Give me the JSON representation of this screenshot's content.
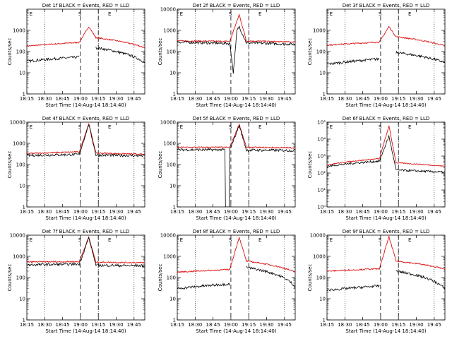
{
  "colors": {
    "events": "#000000",
    "lld": "#dd1111",
    "axis": "#000000",
    "guides": "#000000"
  },
  "chart_data": {
    "type": "line",
    "xlabel": "Start Time (14-Aug-14 18:14:40)",
    "ylabel": "Counts/sec",
    "x_ticks": [
      "18:15",
      "18:30",
      "18:45",
      "19:00",
      "19:15",
      "19:30",
      "19:45"
    ],
    "x_tick_minutes": [
      0,
      15,
      30,
      45,
      60,
      75,
      90
    ],
    "xlim_minutes": [
      0,
      99
    ],
    "ylim": [
      1,
      10000
    ],
    "yscale": "log",
    "dotted_guides_minutes": [
      15,
      60,
      90
    ],
    "dashed_guides_minutes": [
      45,
      60
    ],
    "markers": [
      "E",
      "S",
      "E"
    ],
    "marker_minutes": [
      1,
      42,
      67
    ],
    "detectors": [
      {
        "title": "Det 1f BLACK = Events, RED = LLD",
        "y_ticks": [
          "1",
          "10",
          "100",
          "1000"
        ],
        "events": {
          "pre": 35,
          "pre_end": 55,
          "gap": [
            44,
            58
          ],
          "peak": 1500,
          "post": 150,
          "post_end": 30
        },
        "lld": {
          "pre": 180,
          "pre_end": 270,
          "peak": 1500,
          "post": 450,
          "post_end": 150
        }
      },
      {
        "title": "Det 2f BLACK = Events, RED = LLD",
        "y_ticks": [
          "1",
          "10",
          "100",
          "1000",
          "10000"
        ],
        "events": {
          "pre": 280,
          "pre_end": 240,
          "dip": 10,
          "dip_at": 47,
          "peak": 1500,
          "post": 260,
          "post_end": 220
        },
        "lld": {
          "pre": 320,
          "pre_end": 300,
          "peak": 5500,
          "post": 320,
          "post_end": 280
        }
      },
      {
        "title": "Det 3f BLACK = Events, RED = LLD",
        "y_ticks": [
          "1",
          "10",
          "100",
          "1000"
        ],
        "events": {
          "pre": 25,
          "pre_end": 45,
          "gap": [
            44,
            58
          ],
          "peak": 1500,
          "post": 90,
          "post_end": 30
        },
        "lld": {
          "pre": 200,
          "pre_end": 280,
          "peak": 1500,
          "post": 500,
          "post_end": 180
        }
      },
      {
        "title": "Det 4f BLACK = Events, RED = LLD",
        "y_ticks": [
          "1",
          "10",
          "100",
          "1000",
          "10000"
        ],
        "events": {
          "pre": 270,
          "pre_end": 300,
          "peak": 8000,
          "post": 280,
          "post_end": 260
        },
        "lld": {
          "pre": 330,
          "pre_end": 400,
          "peak": 8500,
          "post": 350,
          "post_end": 300
        }
      },
      {
        "title": "Det 5f BLACK = Events, RED = LLD",
        "y_ticks": [
          "1",
          "10",
          "100",
          "1000",
          "10000"
        ],
        "events": {
          "pre": 500,
          "pre_end": 500,
          "drop": [
            40,
            44
          ],
          "peak": 7000,
          "post": 480,
          "post_end": 460
        },
        "lld": {
          "pre": 650,
          "pre_end": 650,
          "peak": 8000,
          "post": 650,
          "post_end": 620
        }
      },
      {
        "title": "Det 6f BLACK = Events, RED = LLD",
        "y_ticks": [
          "10⁰",
          "10¹",
          "10²",
          "10³",
          "10⁴",
          "10⁵"
        ],
        "ylim": [
          1,
          100000
        ],
        "events": {
          "pre": 250,
          "pre_end": 500,
          "peak": 15000,
          "post": 150,
          "post_end": 110
        },
        "lld": {
          "pre": 300,
          "pre_end": 700,
          "peak": 60000,
          "post": 400,
          "post_end": 250
        }
      },
      {
        "title": "Det 7f BLACK = Events, RED = LLD",
        "y_ticks": [
          "1",
          "10",
          "100",
          "1000",
          "10000"
        ],
        "events": {
          "pre": 400,
          "pre_end": 430,
          "peak": 7500,
          "post": 380,
          "post_end": 360
        },
        "lld": {
          "pre": 550,
          "pre_end": 560,
          "peak": 8000,
          "post": 530,
          "post_end": 500
        }
      },
      {
        "title": "Det 8f BLACK = Events, RED = LLD",
        "y_ticks": [
          "1",
          "10",
          "100",
          "1000",
          "10000"
        ],
        "events": {
          "pre": 30,
          "pre_end": 50,
          "gap": [
            44,
            58
          ],
          "peak": 6000,
          "post": 300,
          "post_end": 35
        },
        "lld": {
          "pre": 180,
          "pre_end": 240,
          "peak": 8000,
          "post": 600,
          "post_end": 180
        }
      },
      {
        "title": "Det 9f BLACK = Events, RED = LLD",
        "y_ticks": [
          "1",
          "10",
          "100",
          "1000",
          "10000"
        ],
        "events": {
          "pre": 25,
          "pre_end": 40,
          "gap": [
            44,
            58
          ],
          "peak": 6000,
          "post": 200,
          "post_end": 28
        },
        "lld": {
          "pre": 200,
          "pre_end": 260,
          "peak": 8500,
          "post": 600,
          "post_end": 250
        }
      }
    ]
  }
}
